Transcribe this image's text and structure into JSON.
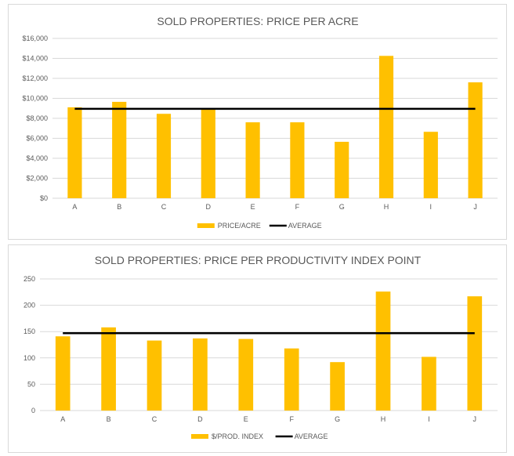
{
  "colors": {
    "bar": "#FFC000",
    "average": "#000000",
    "grid": "#D9D9D9"
  },
  "chart_data": [
    {
      "type": "bar",
      "title": "SOLD PROPERTIES: PRICE PER ACRE",
      "categories": [
        "A",
        "B",
        "C",
        "D",
        "E",
        "F",
        "G",
        "H",
        "I",
        "J"
      ],
      "series": [
        {
          "name": "PRICE/ACRE",
          "type": "bar",
          "values": [
            9100,
            9650,
            8450,
            9000,
            7600,
            7600,
            5650,
            14250,
            6650,
            11600
          ]
        },
        {
          "name": "AVERAGE",
          "type": "line",
          "values": [
            8950,
            8950,
            8950,
            8950,
            8950,
            8950,
            8950,
            8950,
            8950,
            8950
          ]
        }
      ],
      "ylim": [
        0,
        16000
      ],
      "yticks": [
        0,
        2000,
        4000,
        6000,
        8000,
        10000,
        12000,
        14000,
        16000
      ],
      "ytick_labels": [
        "$0",
        "$2,000",
        "$4,000",
        "$6,000",
        "$8,000",
        "$10,000",
        "$12,000",
        "$14,000",
        "$16,000"
      ],
      "grid": true,
      "legend": "bottom"
    },
    {
      "type": "bar",
      "title": "SOLD PROPERTIES: PRICE PER PRODUCTIVITY INDEX  POINT",
      "categories": [
        "A",
        "B",
        "C",
        "D",
        "E",
        "F",
        "G",
        "H",
        "I",
        "J"
      ],
      "series": [
        {
          "name": "$/PROD. INDEX",
          "type": "bar",
          "values": [
            141,
            158,
            133,
            137,
            136,
            118,
            92,
            226,
            102,
            217
          ]
        },
        {
          "name": "AVERAGE",
          "type": "line",
          "values": [
            147,
            147,
            147,
            147,
            147,
            147,
            147,
            147,
            147,
            147
          ]
        }
      ],
      "ylim": [
        0,
        250
      ],
      "yticks": [
        0,
        50,
        100,
        150,
        200,
        250
      ],
      "ytick_labels": [
        "0",
        "50",
        "100",
        "150",
        "200",
        "250"
      ],
      "grid": true,
      "legend": "bottom"
    }
  ]
}
